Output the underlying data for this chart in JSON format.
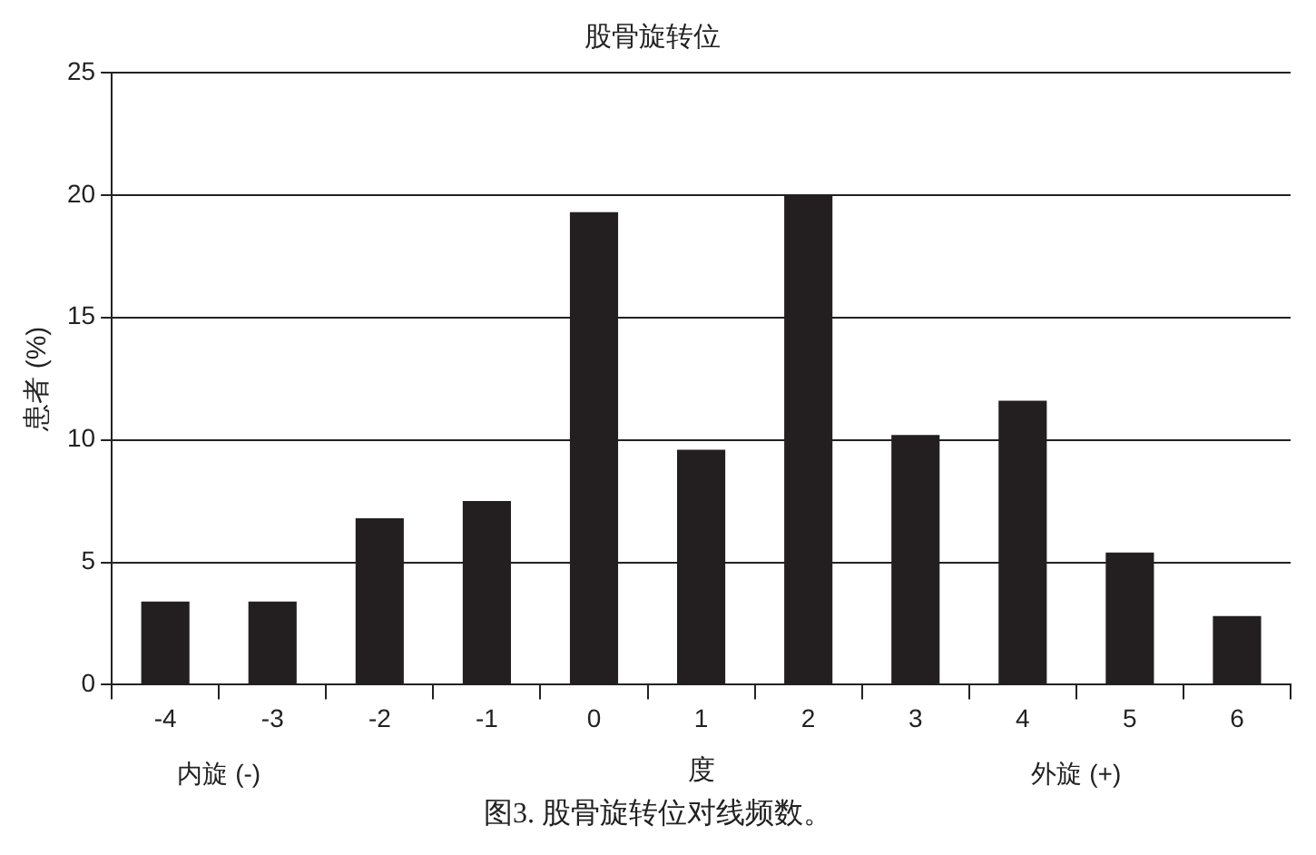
{
  "chart_data": {
    "type": "bar",
    "title": "股骨旋转位",
    "xlabel": "度",
    "ylabel": "患者 (%)",
    "categories": [
      "-4",
      "-3",
      "-2",
      "-1",
      "0",
      "1",
      "2",
      "3",
      "4",
      "5",
      "6"
    ],
    "values": [
      3.4,
      3.4,
      6.8,
      7.5,
      19.3,
      9.6,
      20.0,
      10.2,
      11.6,
      5.4,
      2.8
    ],
    "color": "#231f20",
    "ylim": [
      0,
      25
    ],
    "yticks": [
      0,
      5,
      10,
      15,
      20,
      25
    ],
    "grid": "y",
    "legend": false,
    "annotations": [
      "内旋 (-)",
      "外旋 (+)",
      "图3. 股骨旋转位对线频数。"
    ]
  }
}
